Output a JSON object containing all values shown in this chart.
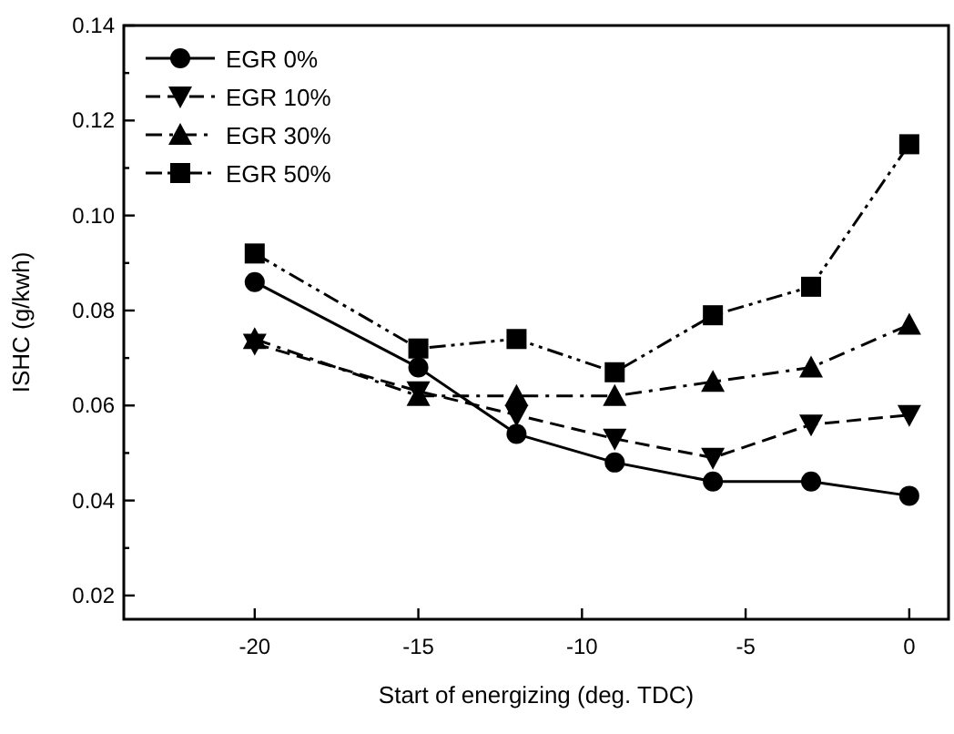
{
  "chart_data": {
    "type": "line",
    "xlabel": "Start of energizing (deg. TDC)",
    "ylabel": "ISHC (g/kwh)",
    "x": [
      -20,
      -15,
      -12,
      -9,
      -6,
      -3,
      0
    ],
    "xlim": [
      -24,
      1.2
    ],
    "xticks": [
      -20,
      -15,
      -10,
      -5,
      0
    ],
    "ylim": [
      0.015,
      0.14
    ],
    "yticks": [
      {
        "value": 0.02,
        "label": "0.02"
      },
      {
        "value": 0.03,
        "label": null
      },
      {
        "value": 0.04,
        "label": "0.04"
      },
      {
        "value": 0.05,
        "label": null
      },
      {
        "value": 0.06,
        "label": "0.06"
      },
      {
        "value": 0.07,
        "label": null
      },
      {
        "value": 0.08,
        "label": "0.08"
      },
      {
        "value": 0.09,
        "label": null
      },
      {
        "value": 0.1,
        "label": "0.10"
      },
      {
        "value": 0.11,
        "label": null
      },
      {
        "value": 0.12,
        "label": "0.12"
      },
      {
        "value": 0.13,
        "label": null
      },
      {
        "value": 0.14,
        "label": "0.14"
      }
    ],
    "legend": "top left",
    "grid": false,
    "series": [
      {
        "name": "EGR 0%",
        "color": "#000000",
        "marker": "circle",
        "line_style": "solid",
        "values": [
          0.086,
          0.068,
          0.054,
          0.048,
          0.044,
          0.044,
          0.041
        ]
      },
      {
        "name": "EGR 10%",
        "color": "#000000",
        "marker": "triangle-down",
        "line_style": "dashed",
        "values": [
          0.073,
          0.063,
          0.058,
          0.053,
          0.049,
          0.056,
          0.058
        ]
      },
      {
        "name": "EGR 30%",
        "color": "#000000",
        "marker": "triangle",
        "line_style": "dashdot",
        "values": [
          0.074,
          0.062,
          0.062,
          0.062,
          0.065,
          0.068,
          0.077
        ]
      },
      {
        "name": "EGR 50%",
        "color": "#000000",
        "marker": "square",
        "line_style": "dashdotdot",
        "values": [
          0.092,
          0.072,
          0.074,
          0.067,
          0.079,
          0.085,
          0.115
        ]
      }
    ]
  }
}
